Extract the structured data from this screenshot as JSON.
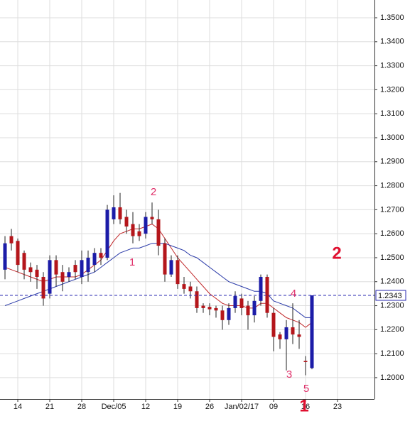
{
  "chart_data": {
    "type": "candlestick",
    "x": [
      0,
      1,
      2,
      3,
      4,
      5,
      6,
      7,
      8,
      9,
      10,
      11,
      12,
      13,
      14,
      15,
      16,
      17,
      18,
      19,
      20,
      21,
      22,
      23,
      24,
      25,
      26,
      27,
      28,
      29,
      30,
      31,
      32,
      33,
      34,
      35,
      36,
      37,
      38,
      39,
      40,
      41,
      42,
      43,
      44,
      45,
      46,
      47,
      48
    ],
    "open": [
      1.245,
      1.259,
      1.257,
      1.252,
      1.246,
      1.245,
      1.242,
      1.235,
      1.249,
      1.244,
      1.242,
      1.247,
      1.242,
      1.244,
      1.247,
      1.252,
      1.25,
      1.266,
      1.271,
      1.267,
      1.264,
      1.261,
      1.26,
      1.267,
      1.266,
      1.256,
      1.243,
      1.249,
      1.239,
      1.238,
      1.236,
      1.23,
      1.2295,
      1.229,
      1.228,
      1.224,
      1.229,
      1.233,
      1.23,
      1.226,
      1.232,
      1.242,
      1.227,
      1.218,
      1.216,
      1.221,
      1.218,
      1.207,
      1.204
    ],
    "high": [
      1.259,
      1.262,
      1.258,
      1.253,
      1.248,
      1.247,
      1.244,
      1.251,
      1.251,
      1.247,
      1.246,
      1.249,
      1.253,
      1.253,
      1.254,
      1.254,
      1.272,
      1.276,
      1.277,
      1.27,
      1.269,
      1.264,
      1.269,
      1.273,
      1.27,
      1.258,
      1.251,
      1.251,
      1.242,
      1.24,
      1.238,
      1.231,
      1.231,
      1.23,
      1.23,
      1.231,
      1.236,
      1.235,
      1.232,
      1.234,
      1.243,
      1.243,
      1.229,
      1.219,
      1.224,
      1.231,
      1.224,
      1.209,
      1.2343
    ],
    "low": [
      1.241,
      1.253,
      1.244,
      1.241,
      1.24,
      1.237,
      1.23,
      1.233,
      1.238,
      1.236,
      1.24,
      1.241,
      1.239,
      1.24,
      1.244,
      1.247,
      1.249,
      1.264,
      1.264,
      1.26,
      1.256,
      1.257,
      1.258,
      1.264,
      1.251,
      1.24,
      1.242,
      1.237,
      1.235,
      1.233,
      1.227,
      1.227,
      1.226,
      1.225,
      1.22,
      1.222,
      1.227,
      1.226,
      1.22,
      1.223,
      1.23,
      1.225,
      1.211,
      1.212,
      1.203,
      1.214,
      1.212,
      1.201,
      1.2035
    ],
    "close": [
      1.256,
      1.256,
      1.247,
      1.245,
      1.244,
      1.242,
      1.233,
      1.249,
      1.243,
      1.24,
      1.244,
      1.244,
      1.249,
      1.25,
      1.252,
      1.25,
      1.27,
      1.271,
      1.266,
      1.263,
      1.259,
      1.259,
      1.267,
      1.266,
      1.255,
      1.243,
      1.249,
      1.239,
      1.237,
      1.236,
      1.229,
      1.229,
      1.2285,
      1.228,
      1.224,
      1.229,
      1.234,
      1.229,
      1.226,
      1.232,
      1.242,
      1.227,
      1.217,
      1.216,
      1.221,
      1.218,
      1.217,
      1.2065,
      1.2343
    ],
    "up_color": "#1c1ca8",
    "down_color": "#b4161b",
    "moving_averages": [
      {
        "color": "#c0282a",
        "values": [
          1.246,
          1.245,
          1.244,
          1.243,
          1.242,
          1.241,
          1.24,
          1.241,
          1.242,
          1.242,
          1.242,
          1.242,
          1.243,
          1.245,
          1.247,
          1.249,
          1.253,
          1.257,
          1.26,
          1.261,
          1.262,
          1.262,
          1.263,
          1.264,
          1.262,
          1.258,
          1.254,
          1.25,
          1.247,
          1.244,
          1.241,
          1.238,
          1.235,
          1.233,
          1.231,
          1.23,
          1.23,
          1.23,
          1.229,
          1.229,
          1.231,
          1.231,
          1.229,
          1.227,
          1.225,
          1.224,
          1.223,
          1.221,
          1.223
        ]
      },
      {
        "color": "#2a3aa8",
        "values": [
          1.23,
          1.231,
          1.232,
          1.233,
          1.234,
          1.235,
          1.236,
          1.237,
          1.238,
          1.239,
          1.24,
          1.241,
          1.242,
          1.243,
          1.244,
          1.246,
          1.248,
          1.25,
          1.252,
          1.253,
          1.254,
          1.254,
          1.255,
          1.256,
          1.256,
          1.256,
          1.255,
          1.254,
          1.253,
          1.251,
          1.25,
          1.248,
          1.246,
          1.244,
          1.242,
          1.24,
          1.239,
          1.238,
          1.237,
          1.236,
          1.236,
          1.235,
          1.232,
          1.231,
          1.23,
          1.229,
          1.227,
          1.225,
          1.225
        ]
      }
    ],
    "xlim": [
      -0.78,
      57.78
    ],
    "xticks": [
      {
        "value": 2,
        "label": "14"
      },
      {
        "value": 7,
        "label": "21"
      },
      {
        "value": 12,
        "label": "28"
      },
      {
        "value": 17,
        "label": "Dec/05"
      },
      {
        "value": 22,
        "label": "12"
      },
      {
        "value": 27,
        "label": "19"
      },
      {
        "value": 32,
        "label": "26"
      },
      {
        "value": 37,
        "label": "Jan/02/17"
      },
      {
        "value": 42,
        "label": "09"
      },
      {
        "value": 47,
        "label": "16"
      },
      {
        "value": 52,
        "label": "23"
      }
    ],
    "ylim": [
      1.1911,
      1.3574
    ],
    "yticks": [
      {
        "value": 1.2,
        "label": "1.2000"
      },
      {
        "value": 1.21,
        "label": "1.2100"
      },
      {
        "value": 1.22,
        "label": "1.2200"
      },
      {
        "value": 1.23,
        "label": "1.2300"
      },
      {
        "value": 1.24,
        "label": "1.2400"
      },
      {
        "value": 1.25,
        "label": "1.2500"
      },
      {
        "value": 1.26,
        "label": "1.2600"
      },
      {
        "value": 1.27,
        "label": "1.2700"
      },
      {
        "value": 1.28,
        "label": "1.2800"
      },
      {
        "value": 1.29,
        "label": "1.2900"
      },
      {
        "value": 1.3,
        "label": "1.3000"
      },
      {
        "value": 1.31,
        "label": "1.3100"
      },
      {
        "value": 1.32,
        "label": "1.3200"
      },
      {
        "value": 1.33,
        "label": "1.3300"
      },
      {
        "value": 1.34,
        "label": "1.3400"
      },
      {
        "value": 1.35,
        "label": "1.3500"
      }
    ],
    "grid": true,
    "current_price": {
      "value": 1.2343,
      "label": "1.2343"
    },
    "wave_labels": [
      "1",
      "2",
      "3",
      "4",
      "5"
    ],
    "markers": [
      "2",
      "1"
    ]
  }
}
